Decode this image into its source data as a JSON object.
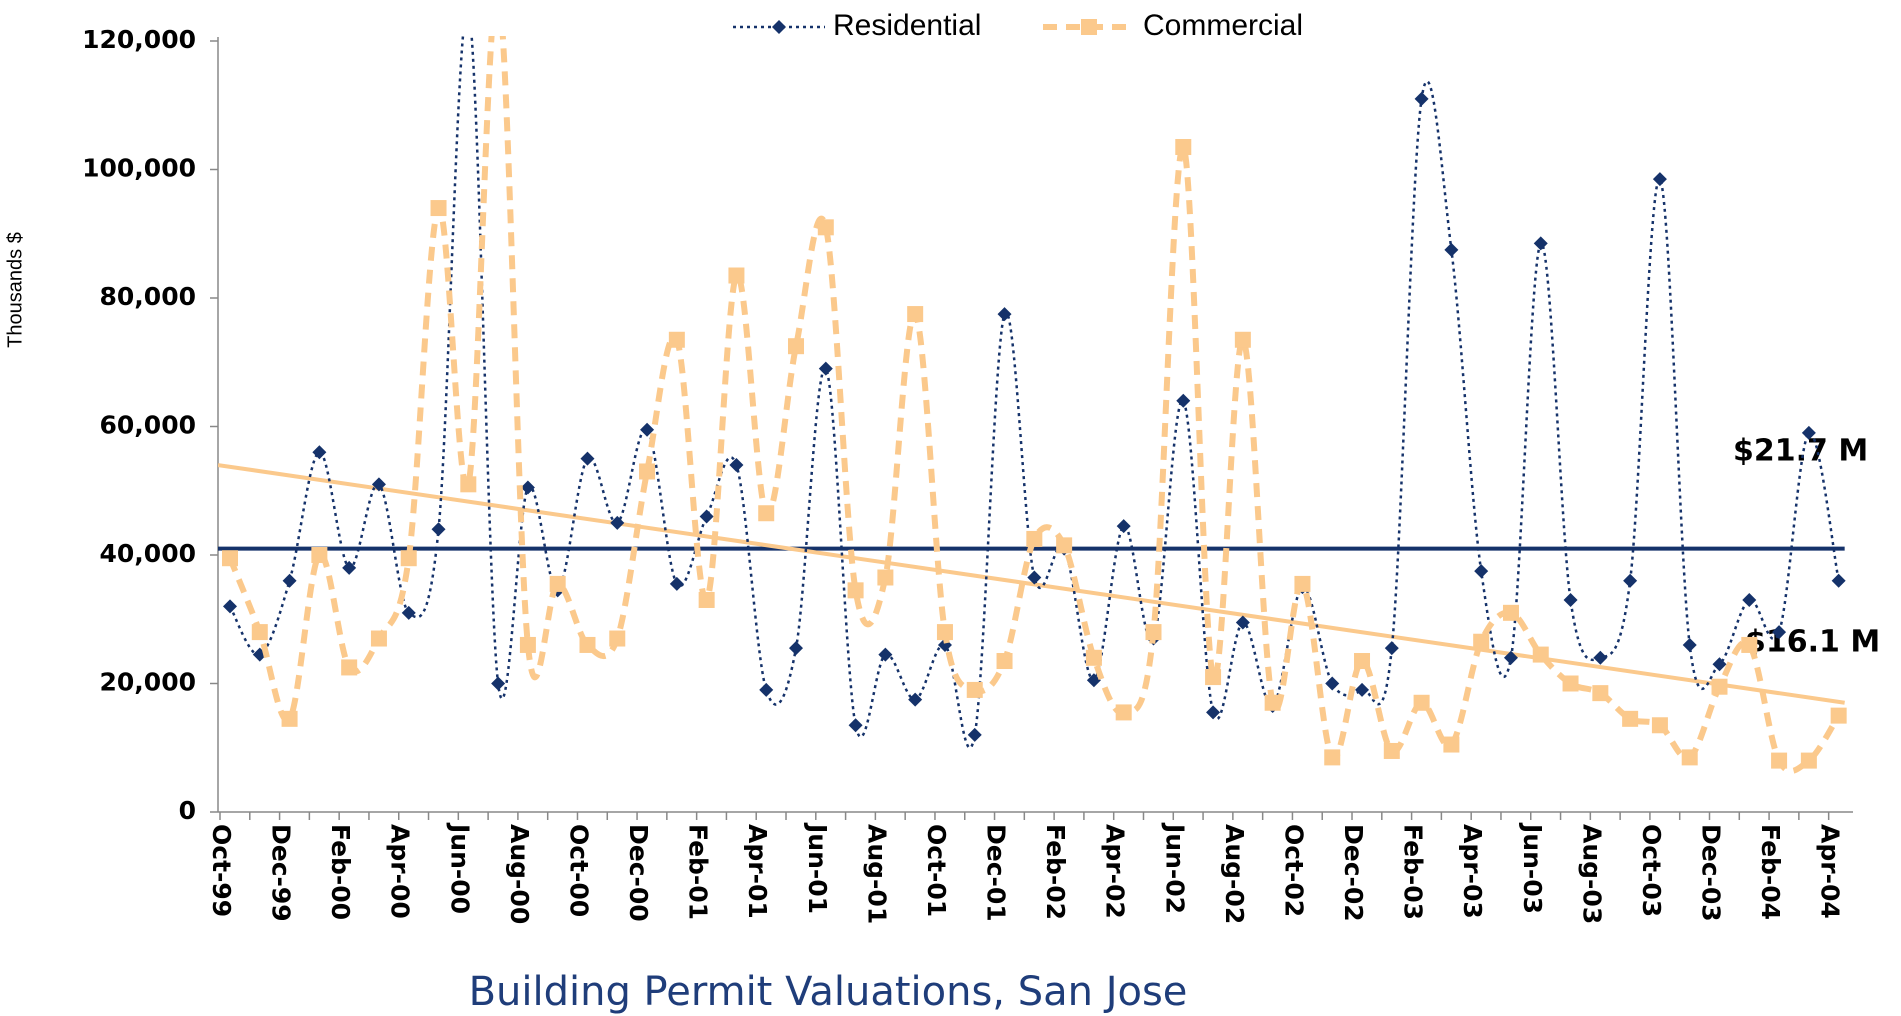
{
  "chart_data": {
    "type": "line",
    "title": "Building Permit Valuations, San Jose",
    "y_label": "Thousands $",
    "categories": [
      "Oct-99",
      null,
      "Dec-99",
      null,
      "Feb-00",
      null,
      "Apr-00",
      null,
      "Jun-00",
      null,
      "Aug-00",
      null,
      "Oct-00",
      null,
      "Dec-00",
      null,
      "Feb-01",
      null,
      "Apr-01",
      null,
      "Jun-01",
      null,
      "Aug-01",
      null,
      "Oct-01",
      null,
      "Dec-01",
      null,
      "Feb-02",
      null,
      "Apr-02",
      null,
      "Jun-02",
      null,
      "Aug-02",
      null,
      "Oct-02",
      null,
      "Dec-02",
      null,
      "Feb-03",
      null,
      "Apr-03",
      null,
      "Jun-03",
      null,
      "Aug-03",
      null,
      "Oct-03",
      null,
      "Dec-03",
      null,
      "Feb-04",
      null,
      "Apr-04"
    ],
    "series": [
      {
        "name": "Residential",
        "color": "#15326a",
        "values": [
          32000,
          24500,
          36000,
          56000,
          38000,
          51000,
          31000,
          44000,
          125000,
          20000,
          50500,
          34500,
          55000,
          45000,
          59500,
          35500,
          46000,
          54000,
          19000,
          25500,
          69000,
          13500,
          24500,
          17500,
          26000,
          12000,
          77500,
          36500,
          41000,
          20500,
          44500,
          27000,
          64000,
          15500,
          29500,
          16500,
          35000,
          20000,
          19000,
          25500,
          111000,
          87500,
          37500,
          24000,
          88500,
          33000,
          24000,
          36000,
          98500,
          26000,
          23000,
          33000,
          28000,
          59000,
          36000
        ]
      },
      {
        "name": "Commercial",
        "color": "#fbc98c",
        "values": [
          39500,
          28000,
          14500,
          40000,
          22500,
          27000,
          39500,
          94000,
          51000,
          128000,
          26000,
          35500,
          26000,
          27000,
          53000,
          73500,
          33000,
          83500,
          46500,
          72500,
          91000,
          34500,
          36500,
          77500,
          28000,
          19000,
          23500,
          42500,
          41500,
          24000,
          15500,
          28000,
          103500,
          21000,
          73500,
          17000,
          35500,
          8500,
          23500,
          9500,
          17000,
          10500,
          26500,
          31000,
          24500,
          20000,
          18500,
          14500,
          13500,
          8500,
          19500,
          26000,
          8000,
          8000,
          15000
        ]
      }
    ],
    "trendlines": [
      {
        "color": "#15326a",
        "values": [
          41000,
          41000
        ]
      },
      {
        "color": "#fbc98c",
        "values": [
          54000,
          17000
        ]
      }
    ],
    "annotations": [
      "$21.7 M",
      "$16.1 M"
    ],
    "ylim": [
      0,
      120000
    ],
    "yticks": [
      0,
      {
        "value": 20000,
        "label": "20,000"
      },
      {
        "value": 40000,
        "label": "40,000"
      },
      {
        "value": 60000,
        "label": "60,000"
      },
      {
        "value": 80000,
        "label": "80,000"
      },
      {
        "value": 100000,
        "label": "100,000"
      },
      {
        "value": 120000,
        "label": "120,000"
      }
    ],
    "grid": false,
    "legend": "top"
  }
}
